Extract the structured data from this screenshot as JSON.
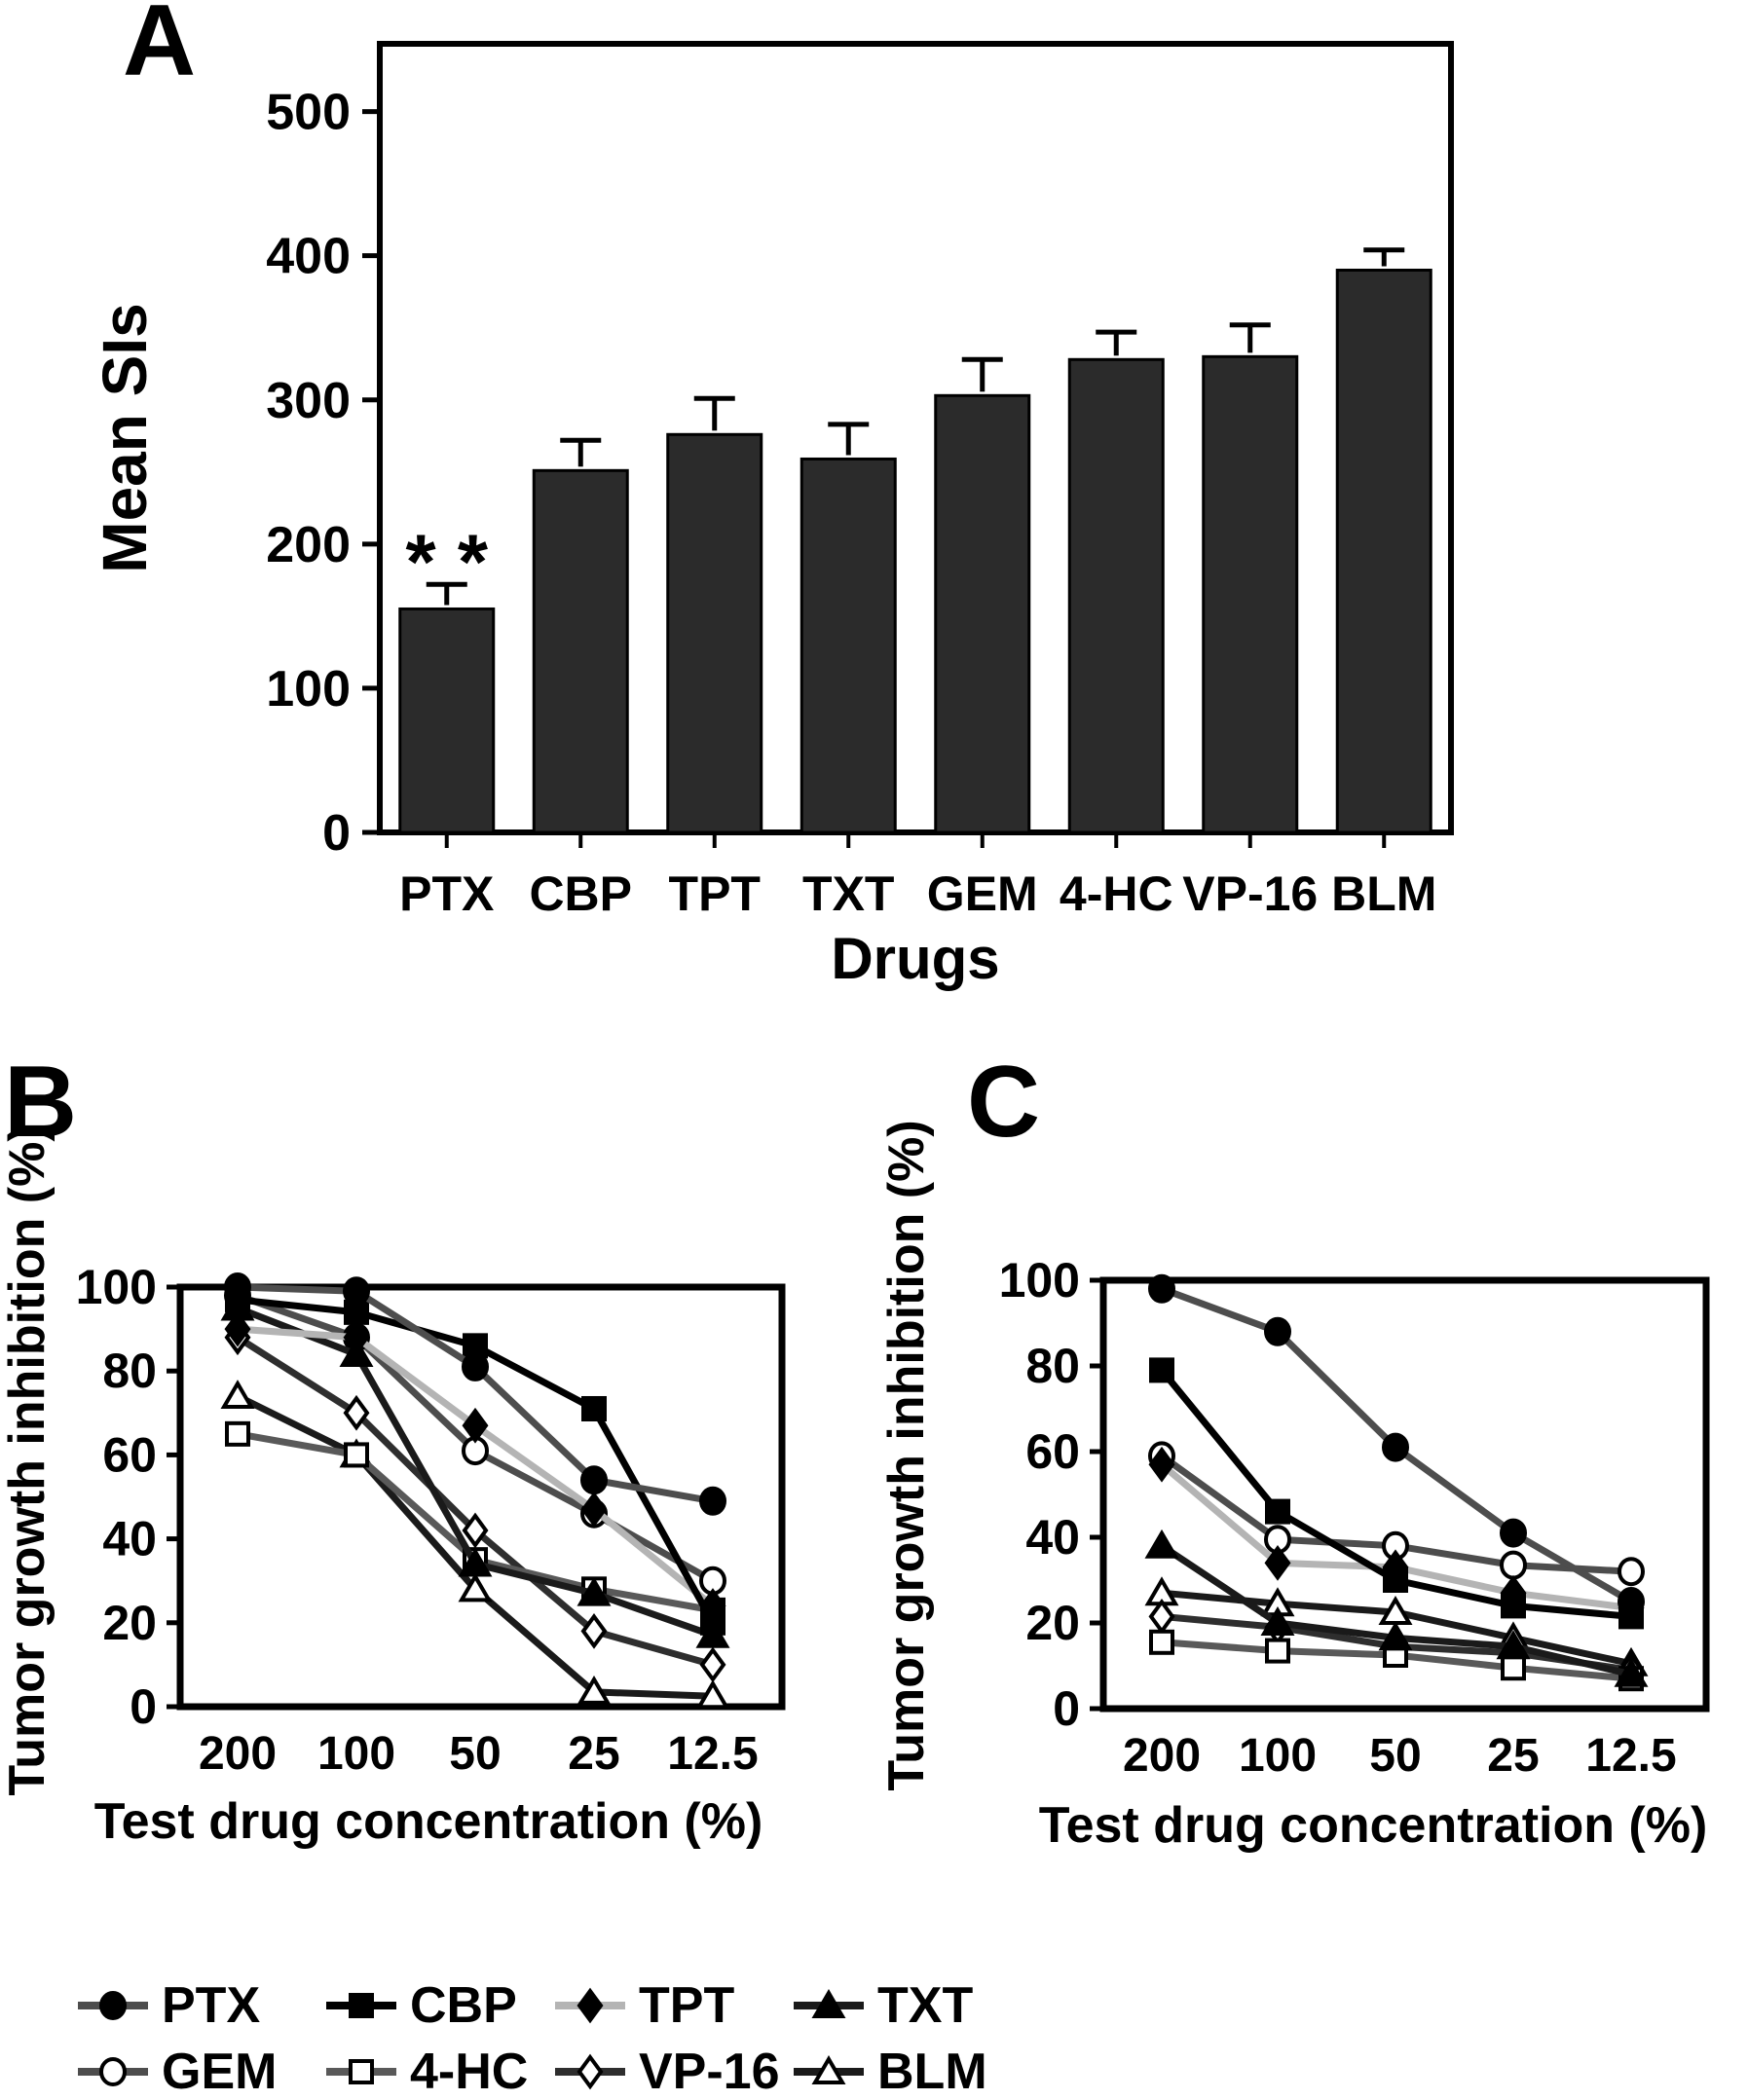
{
  "figure": {
    "panel_a_label": "A",
    "panel_b_label": "B",
    "panel_c_label": "C"
  },
  "colors": {
    "bar_fill": "#2b2b2b",
    "axis": "#000000",
    "background": "#ffffff"
  },
  "chart_data": [
    {
      "id": "A",
      "type": "bar",
      "title": "",
      "xlabel": "Drugs",
      "ylabel": "Mean SIs",
      "categories": [
        "PTX",
        "CBP",
        "TPT",
        "TXT",
        "GEM",
        "4-HC",
        "VP-16",
        "BLM"
      ],
      "values": [
        155,
        251,
        276,
        259,
        303,
        328,
        330,
        390
      ],
      "errors": [
        17,
        21,
        25,
        24,
        25,
        19,
        22,
        14
      ],
      "yticks": [
        0,
        100,
        200,
        300,
        400,
        500
      ],
      "ylim": [
        0,
        547
      ],
      "grid": false,
      "annotation": {
        "text": "* *",
        "category": "PTX"
      }
    },
    {
      "id": "B",
      "type": "line",
      "title": "",
      "xlabel": "Test drug concentration (%)",
      "ylabel": "Tumor growth inhibition (%)",
      "categories": [
        "200",
        "100",
        "50",
        "25",
        "12.5"
      ],
      "yticks": [
        0,
        20,
        40,
        60,
        80,
        100
      ],
      "ylim": [
        0,
        100
      ],
      "grid": false,
      "legend_position": "below-figure",
      "series": [
        {
          "name": "PTX",
          "marker": "circle",
          "filled": true,
          "color": "#4d4d4d",
          "values": [
            100,
            99,
            81,
            54,
            49
          ]
        },
        {
          "name": "CBP",
          "marker": "square",
          "filled": true,
          "color": "#000000",
          "values": [
            97,
            94,
            86,
            71,
            20
          ]
        },
        {
          "name": "TPT",
          "marker": "diamond",
          "filled": true,
          "color": "#b4b4b4",
          "values": [
            90,
            88,
            67,
            47,
            24
          ]
        },
        {
          "name": "TXT",
          "marker": "triangle",
          "filled": true,
          "color": "#1a1a1a",
          "values": [
            95,
            84,
            34,
            27,
            17
          ]
        },
        {
          "name": "GEM",
          "marker": "circle",
          "filled": false,
          "color": "#4d4d4d",
          "values": [
            98,
            88,
            61,
            46,
            30
          ]
        },
        {
          "name": "4-HC",
          "marker": "square",
          "filled": false,
          "color": "#595959",
          "values": [
            65,
            60,
            35,
            28,
            23
          ]
        },
        {
          "name": "VP-16",
          "marker": "diamond",
          "filled": false,
          "color": "#2e2e2e",
          "values": [
            88,
            70,
            42,
            18,
            10
          ]
        },
        {
          "name": "BLM",
          "marker": "triangle",
          "filled": false,
          "color": "#1a1a1a",
          "values": [
            74,
            60,
            28,
            3.5,
            2.5
          ]
        }
      ]
    },
    {
      "id": "C",
      "type": "line",
      "title": "",
      "xlabel": "Test drug concentration (%)",
      "ylabel": "Tumor growth inhibition (%)",
      "categories": [
        "200",
        "100",
        "50",
        "25",
        "12.5"
      ],
      "yticks": [
        0,
        20,
        40,
        60,
        80,
        100
      ],
      "ylim": [
        0,
        100
      ],
      "grid": false,
      "series": [
        {
          "name": "PTX",
          "marker": "circle",
          "filled": true,
          "color": "#4d4d4d",
          "values": [
            98,
            88,
            61,
            41,
            25
          ]
        },
        {
          "name": "CBP",
          "marker": "square",
          "filled": true,
          "color": "#000000",
          "values": [
            79,
            46,
            30,
            24,
            21.5
          ]
        },
        {
          "name": "TPT",
          "marker": "diamond",
          "filled": true,
          "color": "#b4b4b4",
          "values": [
            57,
            34,
            33,
            27,
            23.5
          ]
        },
        {
          "name": "TXT",
          "marker": "triangle",
          "filled": true,
          "color": "#1a1a1a",
          "values": [
            38,
            20,
            16.5,
            14.5,
            8
          ]
        },
        {
          "name": "GEM",
          "marker": "circle",
          "filled": false,
          "color": "#4d4d4d",
          "values": [
            59,
            39.5,
            38,
            33.5,
            32
          ]
        },
        {
          "name": "4-HC",
          "marker": "square",
          "filled": false,
          "color": "#595959",
          "values": [
            15.5,
            13.5,
            12.5,
            9.5,
            7
          ]
        },
        {
          "name": "VP-16",
          "marker": "diamond",
          "filled": false,
          "color": "#2e2e2e",
          "values": [
            21.5,
            19,
            14.5,
            13,
            9
          ]
        },
        {
          "name": "BLM",
          "marker": "triangle",
          "filled": false,
          "color": "#1a1a1a",
          "values": [
            27,
            24.5,
            22.5,
            16.5,
            10.5
          ]
        }
      ]
    }
  ],
  "legend": {
    "rows": [
      [
        "PTX",
        "CBP",
        "TPT",
        "TXT"
      ],
      [
        "GEM",
        "4-HC",
        "VP-16",
        "BLM"
      ]
    ]
  }
}
